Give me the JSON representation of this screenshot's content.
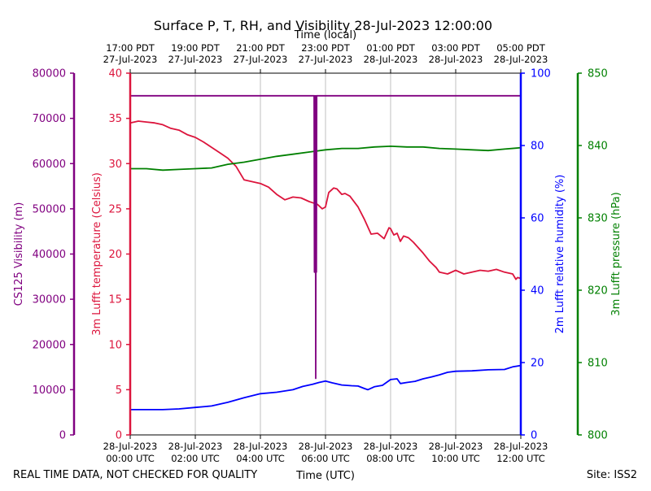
{
  "chart_data": {
    "type": "line",
    "title": "Surface P, T, RH, and Visibility 28-Jul-2023 12:00:00",
    "top_axis_label": "Time (local)",
    "top_ticks": [
      {
        "h": 0,
        "line1": "17:00 PDT",
        "line2": "27-Jul-2023"
      },
      {
        "h": 2,
        "line1": "19:00 PDT",
        "line2": "27-Jul-2023"
      },
      {
        "h": 4,
        "line1": "21:00 PDT",
        "line2": "27-Jul-2023"
      },
      {
        "h": 6,
        "line1": "23:00 PDT",
        "line2": "27-Jul-2023"
      },
      {
        "h": 8,
        "line1": "01:00 PDT",
        "line2": "28-Jul-2023"
      },
      {
        "h": 10,
        "line1": "03:00 PDT",
        "line2": "28-Jul-2023"
      },
      {
        "h": 12,
        "line1": "05:00 PDT",
        "line2": "28-Jul-2023"
      }
    ],
    "xlabel": "Time (UTC)",
    "x_range_hours": [
      0,
      12
    ],
    "bottom_ticks": [
      {
        "h": 0,
        "line1": "28-Jul-2023",
        "line2": "00:00 UTC"
      },
      {
        "h": 2,
        "line1": "28-Jul-2023",
        "line2": "02:00 UTC"
      },
      {
        "h": 4,
        "line1": "28-Jul-2023",
        "line2": "04:00 UTC"
      },
      {
        "h": 6,
        "line1": "28-Jul-2023",
        "line2": "06:00 UTC"
      },
      {
        "h": 8,
        "line1": "28-Jul-2023",
        "line2": "08:00 UTC"
      },
      {
        "h": 10,
        "line1": "28-Jul-2023",
        "line2": "10:00 UTC"
      },
      {
        "h": 12,
        "line1": "28-Jul-2023",
        "line2": "12:00 UTC"
      }
    ],
    "axes": {
      "visibility": {
        "label": "CS125 Visibility (m)",
        "range": [
          0,
          80000
        ],
        "ticks": [
          0,
          10000,
          20000,
          30000,
          40000,
          50000,
          60000,
          70000,
          80000
        ],
        "color": "#800080"
      },
      "temperature": {
        "label": "3m Lufft temperature (Celsius)",
        "range": [
          0,
          40
        ],
        "ticks": [
          0,
          5,
          10,
          15,
          20,
          25,
          30,
          35,
          40
        ],
        "color": "#dc143c"
      },
      "humidity": {
        "label": "2m Lufft relative humidity (%)",
        "range": [
          0,
          100
        ],
        "ticks": [
          0,
          20,
          40,
          60,
          80,
          100
        ],
        "color": "#0000ff"
      },
      "pressure": {
        "label": "3m Lufft pressure (hPa)",
        "range": [
          800,
          850
        ],
        "ticks": [
          800,
          810,
          820,
          830,
          840,
          850
        ],
        "color": "#008000"
      }
    },
    "series": [
      {
        "name": "3m Lufft temperature",
        "axis": "temperature",
        "color": "#dc143c",
        "x": [
          0,
          0.25,
          0.5,
          0.75,
          1.0,
          1.25,
          1.5,
          1.75,
          2.0,
          2.25,
          2.5,
          2.75,
          3.0,
          3.25,
          3.5,
          3.75,
          4.0,
          4.25,
          4.5,
          4.75,
          5.0,
          5.25,
          5.5,
          5.75,
          5.9,
          6.0,
          6.1,
          6.25,
          6.35,
          6.5,
          6.6,
          6.75,
          7.0,
          7.2,
          7.4,
          7.6,
          7.8,
          7.95,
          8.0,
          8.1,
          8.2,
          8.3,
          8.4,
          8.55,
          8.7,
          9.0,
          9.2,
          9.4,
          9.5,
          9.75,
          10.0,
          10.25,
          10.5,
          10.75,
          11.0,
          11.25,
          11.5,
          11.75,
          11.85,
          11.9,
          12.0
        ],
        "y": [
          34.5,
          34.7,
          34.6,
          34.5,
          34.3,
          33.9,
          33.7,
          33.2,
          32.9,
          32.4,
          31.8,
          31.2,
          30.6,
          29.7,
          28.2,
          28.0,
          27.8,
          27.4,
          26.6,
          26.0,
          26.3,
          26.2,
          25.8,
          25.5,
          25.0,
          25.2,
          26.8,
          27.3,
          27.2,
          26.6,
          26.7,
          26.4,
          25.2,
          23.8,
          22.2,
          22.3,
          21.7,
          22.9,
          22.8,
          22.1,
          22.3,
          21.4,
          22.0,
          21.8,
          21.3,
          20.1,
          19.2,
          18.5,
          18.0,
          17.8,
          18.2,
          17.8,
          18.0,
          18.2,
          18.1,
          18.3,
          18.0,
          17.8,
          17.2,
          17.4,
          17.3
        ]
      },
      {
        "name": "2m Lufft relative humidity",
        "axis": "humidity",
        "color": "#0000ff",
        "x": [
          0,
          0.5,
          1.0,
          1.5,
          2.0,
          2.5,
          3.0,
          3.5,
          4.0,
          4.5,
          5.0,
          5.3,
          5.6,
          5.8,
          6.0,
          6.2,
          6.5,
          6.8,
          7.0,
          7.2,
          7.3,
          7.5,
          7.75,
          8.0,
          8.2,
          8.3,
          8.5,
          8.75,
          9.0,
          9.25,
          9.5,
          9.75,
          10.0,
          10.5,
          11.0,
          11.5,
          11.75,
          12.0
        ],
        "y": [
          7.0,
          7.0,
          7.0,
          7.2,
          7.6,
          8.0,
          9.0,
          10.3,
          11.4,
          11.8,
          12.5,
          13.4,
          14.0,
          14.5,
          14.9,
          14.4,
          13.8,
          13.6,
          13.5,
          12.8,
          12.5,
          13.3,
          13.7,
          15.3,
          15.5,
          14.2,
          14.5,
          14.8,
          15.5,
          16.0,
          16.6,
          17.3,
          17.6,
          17.7,
          18.0,
          18.1,
          18.8,
          19.2
        ]
      },
      {
        "name": "3m Lufft pressure",
        "axis": "pressure",
        "color": "#008000",
        "x": [
          0,
          0.5,
          1.0,
          1.5,
          2.0,
          2.5,
          3.0,
          3.5,
          4.0,
          4.5,
          5.0,
          5.5,
          6.0,
          6.5,
          7.0,
          7.5,
          8.0,
          8.5,
          9.0,
          9.5,
          10.0,
          10.5,
          11.0,
          11.5,
          12.0
        ],
        "y": [
          836.8,
          836.8,
          836.6,
          836.7,
          836.8,
          836.9,
          837.4,
          837.7,
          838.1,
          838.5,
          838.8,
          839.1,
          839.4,
          839.6,
          839.6,
          839.8,
          839.9,
          839.8,
          839.8,
          839.6,
          839.5,
          839.4,
          839.3,
          839.5,
          839.7
        ]
      },
      {
        "name": "CS125 Visibility",
        "axis": "visibility",
        "color": "#800080",
        "x": [
          0,
          5.65,
          5.66,
          5.67,
          5.68,
          5.69,
          5.7,
          5.71,
          5.72,
          5.73,
          12.0
        ],
        "y": [
          75000,
          75000,
          36000,
          75000,
          40000,
          75000,
          12500,
          75000,
          36000,
          75000,
          75000
        ]
      }
    ],
    "footer_left": "REAL TIME DATA, NOT CHECKED FOR QUALITY",
    "footer_right": "Site: ISS2",
    "grid": true
  }
}
